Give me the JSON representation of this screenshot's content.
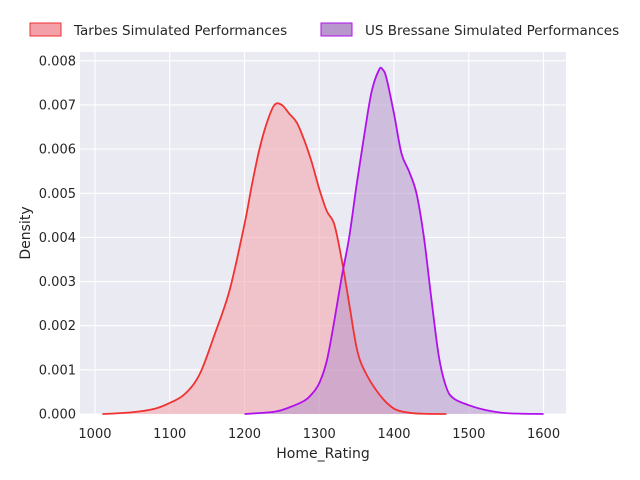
{
  "chart_data": {
    "type": "area",
    "title": "",
    "xlabel": "Home_Rating",
    "ylabel": "Density",
    "xlim": [
      980,
      1630
    ],
    "ylim": [
      0,
      0.0082
    ],
    "xticks": [
      1000,
      1100,
      1200,
      1300,
      1400,
      1500,
      1600
    ],
    "xtick_labels": [
      "1000",
      "1100",
      "1200",
      "1300",
      "1400",
      "1500",
      "1600"
    ],
    "yticks": [
      0,
      0.001,
      0.002,
      0.003,
      0.004,
      0.005,
      0.006,
      0.007,
      0.008
    ],
    "ytick_labels": [
      "0.000",
      "0.001",
      "0.002",
      "0.003",
      "0.004",
      "0.005",
      "0.006",
      "0.007",
      "0.008"
    ],
    "grid": true,
    "background": "#eaeaf2",
    "legend_placement": "top-center, above plot",
    "series": [
      {
        "name": "Tarbes Simulated Performances",
        "line_color": "#f03232",
        "fill_color": "#f4a0a8",
        "fill_opacity": 0.55,
        "x": [
          1010,
          1050,
          1080,
          1100,
          1120,
          1140,
          1160,
          1180,
          1200,
          1210,
          1220,
          1230,
          1240,
          1250,
          1260,
          1270,
          1280,
          1290,
          1300,
          1310,
          1320,
          1330,
          1340,
          1350,
          1360,
          1380,
          1400,
          1420,
          1440,
          1470
        ],
        "values": [
          0.0,
          4e-05,
          0.00012,
          0.00025,
          0.00045,
          0.0009,
          0.0018,
          0.0028,
          0.0043,
          0.0052,
          0.006,
          0.0066,
          0.007,
          0.007,
          0.0068,
          0.0066,
          0.0062,
          0.0057,
          0.0051,
          0.0046,
          0.0043,
          0.0035,
          0.0025,
          0.0015,
          0.001,
          0.00045,
          0.00012,
          3e-05,
          5e-06,
          0.0
        ]
      },
      {
        "name": "US Bressane Simulated Performances",
        "line_color": "#b010ee",
        "fill_color": "#b898cc",
        "fill_opacity": 0.55,
        "x": [
          1200,
          1240,
          1260,
          1280,
          1290,
          1300,
          1310,
          1320,
          1330,
          1340,
          1350,
          1360,
          1370,
          1380,
          1385,
          1390,
          1400,
          1410,
          1420,
          1430,
          1440,
          1450,
          1460,
          1470,
          1480,
          1500,
          1520,
          1550,
          1600
        ],
        "values": [
          0.0,
          5e-05,
          0.00015,
          0.0003,
          0.00045,
          0.0007,
          0.0012,
          0.0021,
          0.0031,
          0.004,
          0.0052,
          0.0063,
          0.0073,
          0.0078,
          0.0078,
          0.0076,
          0.0068,
          0.0059,
          0.0055,
          0.005,
          0.004,
          0.0026,
          0.0013,
          0.0006,
          0.00035,
          0.0002,
          0.0001,
          2e-05,
          0.0
        ]
      }
    ]
  }
}
